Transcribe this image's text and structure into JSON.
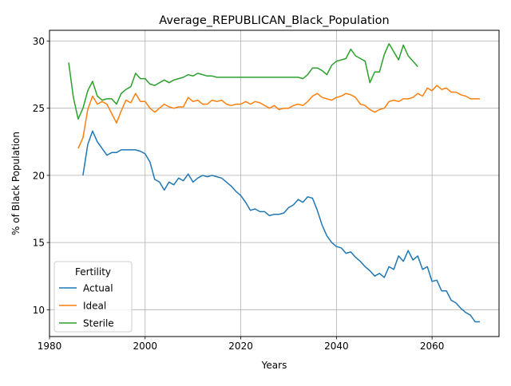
{
  "chart_data": {
    "type": "line",
    "title": "Average_REPUBLICAN_Black_Population",
    "xlabel": "Years",
    "ylabel": "% of Black Population",
    "xlim": [
      1980,
      2074
    ],
    "ylim": [
      8,
      30.8
    ],
    "xticks": [
      1980,
      2000,
      2020,
      2040,
      2060
    ],
    "yticks": [
      10,
      15,
      20,
      25,
      30
    ],
    "grid": true,
    "legend": {
      "title": "Fertility",
      "position": "lower-left"
    },
    "series": [
      {
        "name": "Actual",
        "color": "#1f77b4",
        "points": [
          [
            1987,
            20.0
          ],
          [
            1988,
            22.3
          ],
          [
            1989,
            23.3
          ],
          [
            1990,
            22.5
          ],
          [
            1991,
            22.0
          ],
          [
            1992,
            21.5
          ],
          [
            1993,
            21.7
          ],
          [
            1994,
            21.7
          ],
          [
            1995,
            21.9
          ],
          [
            1996,
            21.9
          ],
          [
            1997,
            21.9
          ],
          [
            1998,
            21.9
          ],
          [
            1999,
            21.8
          ],
          [
            2000,
            21.6
          ],
          [
            2001,
            21.0
          ],
          [
            2002,
            19.7
          ],
          [
            2003,
            19.5
          ],
          [
            2004,
            18.9
          ],
          [
            2005,
            19.5
          ],
          [
            2006,
            19.3
          ],
          [
            2007,
            19.8
          ],
          [
            2008,
            19.6
          ],
          [
            2009,
            20.1
          ],
          [
            2010,
            19.5
          ],
          [
            2011,
            19.8
          ],
          [
            2012,
            20.0
          ],
          [
            2013,
            19.9
          ],
          [
            2014,
            20.0
          ],
          [
            2015,
            19.9
          ],
          [
            2016,
            19.8
          ],
          [
            2017,
            19.5
          ],
          [
            2018,
            19.2
          ],
          [
            2019,
            18.8
          ],
          [
            2020,
            18.5
          ],
          [
            2021,
            18.0
          ],
          [
            2022,
            17.4
          ],
          [
            2023,
            17.5
          ],
          [
            2024,
            17.3
          ],
          [
            2025,
            17.3
          ],
          [
            2026,
            17.0
          ],
          [
            2027,
            17.1
          ],
          [
            2028,
            17.1
          ],
          [
            2029,
            17.2
          ],
          [
            2030,
            17.6
          ],
          [
            2031,
            17.8
          ],
          [
            2032,
            18.2
          ],
          [
            2033,
            18.0
          ],
          [
            2034,
            18.4
          ],
          [
            2035,
            18.3
          ],
          [
            2036,
            17.4
          ],
          [
            2037,
            16.3
          ],
          [
            2038,
            15.5
          ],
          [
            2039,
            15.0
          ],
          [
            2040,
            14.7
          ],
          [
            2041,
            14.6
          ],
          [
            2042,
            14.2
          ],
          [
            2043,
            14.3
          ],
          [
            2044,
            13.9
          ],
          [
            2045,
            13.6
          ],
          [
            2046,
            13.2
          ],
          [
            2047,
            12.9
          ],
          [
            2048,
            12.5
          ],
          [
            2049,
            12.7
          ],
          [
            2050,
            12.4
          ],
          [
            2051,
            13.2
          ],
          [
            2052,
            13.0
          ],
          [
            2053,
            14.0
          ],
          [
            2054,
            13.6
          ],
          [
            2055,
            14.4
          ],
          [
            2056,
            13.7
          ],
          [
            2057,
            14.0
          ],
          [
            2058,
            13.0
          ],
          [
            2059,
            13.2
          ],
          [
            2060,
            12.1
          ],
          [
            2061,
            12.2
          ],
          [
            2062,
            11.4
          ],
          [
            2063,
            11.4
          ],
          [
            2064,
            10.7
          ],
          [
            2065,
            10.5
          ],
          [
            2066,
            10.1
          ],
          [
            2067,
            9.8
          ],
          [
            2068,
            9.6
          ],
          [
            2069,
            9.1
          ],
          [
            2070,
            9.1
          ]
        ]
      },
      {
        "name": "Ideal",
        "color": "#ff7f0e",
        "points": [
          [
            1986,
            22.0
          ],
          [
            1987,
            22.8
          ],
          [
            1988,
            24.9
          ],
          [
            1989,
            25.9
          ],
          [
            1990,
            25.3
          ],
          [
            1991,
            25.5
          ],
          [
            1992,
            25.3
          ],
          [
            1993,
            24.6
          ],
          [
            1994,
            23.9
          ],
          [
            1995,
            24.8
          ],
          [
            1996,
            25.6
          ],
          [
            1997,
            25.4
          ],
          [
            1998,
            26.1
          ],
          [
            1999,
            25.5
          ],
          [
            2000,
            25.5
          ],
          [
            2001,
            25.0
          ],
          [
            2002,
            24.7
          ],
          [
            2003,
            25.0
          ],
          [
            2004,
            25.3
          ],
          [
            2005,
            25.1
          ],
          [
            2006,
            25.0
          ],
          [
            2007,
            25.1
          ],
          [
            2008,
            25.1
          ],
          [
            2009,
            25.8
          ],
          [
            2010,
            25.5
          ],
          [
            2011,
            25.6
          ],
          [
            2012,
            25.3
          ],
          [
            2013,
            25.3
          ],
          [
            2014,
            25.6
          ],
          [
            2015,
            25.5
          ],
          [
            2016,
            25.6
          ],
          [
            2017,
            25.3
          ],
          [
            2018,
            25.2
          ],
          [
            2019,
            25.3
          ],
          [
            2020,
            25.3
          ],
          [
            2021,
            25.5
          ],
          [
            2022,
            25.3
          ],
          [
            2023,
            25.5
          ],
          [
            2024,
            25.4
          ],
          [
            2025,
            25.2
          ],
          [
            2026,
            25.0
          ],
          [
            2027,
            25.2
          ],
          [
            2028,
            24.9
          ],
          [
            2029,
            25.0
          ],
          [
            2030,
            25.0
          ],
          [
            2031,
            25.2
          ],
          [
            2032,
            25.3
          ],
          [
            2033,
            25.2
          ],
          [
            2034,
            25.5
          ],
          [
            2035,
            25.9
          ],
          [
            2036,
            26.1
          ],
          [
            2037,
            25.8
          ],
          [
            2038,
            25.7
          ],
          [
            2039,
            25.6
          ],
          [
            2040,
            25.8
          ],
          [
            2041,
            25.9
          ],
          [
            2042,
            26.1
          ],
          [
            2043,
            26.0
          ],
          [
            2044,
            25.8
          ],
          [
            2045,
            25.3
          ],
          [
            2046,
            25.2
          ],
          [
            2047,
            24.9
          ],
          [
            2048,
            24.7
          ],
          [
            2049,
            24.9
          ],
          [
            2050,
            25.0
          ],
          [
            2051,
            25.5
          ],
          [
            2052,
            25.6
          ],
          [
            2053,
            25.5
          ],
          [
            2054,
            25.7
          ],
          [
            2055,
            25.7
          ],
          [
            2056,
            25.8
          ],
          [
            2057,
            26.1
          ],
          [
            2058,
            25.9
          ],
          [
            2059,
            26.5
          ],
          [
            2060,
            26.3
          ],
          [
            2061,
            26.7
          ],
          [
            2062,
            26.4
          ],
          [
            2063,
            26.5
          ],
          [
            2064,
            26.2
          ],
          [
            2065,
            26.2
          ],
          [
            2066,
            26.0
          ],
          [
            2067,
            25.9
          ],
          [
            2068,
            25.7
          ],
          [
            2069,
            25.7
          ],
          [
            2070,
            25.7
          ]
        ]
      },
      {
        "name": "Sterile",
        "color": "#2ca02c",
        "points": [
          [
            1984,
            28.4
          ],
          [
            1985,
            25.8
          ],
          [
            1986,
            24.2
          ],
          [
            1987,
            25.0
          ],
          [
            1988,
            26.3
          ],
          [
            1989,
            27.0
          ],
          [
            1990,
            25.9
          ],
          [
            1991,
            25.6
          ],
          [
            1992,
            25.7
          ],
          [
            1993,
            25.7
          ],
          [
            1994,
            25.3
          ],
          [
            1995,
            26.1
          ],
          [
            1996,
            26.4
          ],
          [
            1997,
            26.6
          ],
          [
            1998,
            27.6
          ],
          [
            1999,
            27.2
          ],
          [
            2000,
            27.2
          ],
          [
            2001,
            26.8
          ],
          [
            2002,
            26.7
          ],
          [
            2003,
            26.9
          ],
          [
            2004,
            27.1
          ],
          [
            2005,
            26.9
          ],
          [
            2006,
            27.1
          ],
          [
            2007,
            27.2
          ],
          [
            2008,
            27.3
          ],
          [
            2009,
            27.5
          ],
          [
            2010,
            27.4
          ],
          [
            2011,
            27.6
          ],
          [
            2012,
            27.5
          ],
          [
            2013,
            27.4
          ],
          [
            2014,
            27.4
          ],
          [
            2015,
            27.3
          ],
          [
            2016,
            27.3
          ],
          [
            2017,
            27.3
          ],
          [
            2018,
            27.3
          ],
          [
            2019,
            27.3
          ],
          [
            2020,
            27.3
          ],
          [
            2021,
            27.3
          ],
          [
            2022,
            27.3
          ],
          [
            2023,
            27.3
          ],
          [
            2024,
            27.3
          ],
          [
            2025,
            27.3
          ],
          [
            2026,
            27.3
          ],
          [
            2027,
            27.3
          ],
          [
            2028,
            27.3
          ],
          [
            2029,
            27.3
          ],
          [
            2030,
            27.3
          ],
          [
            2031,
            27.3
          ],
          [
            2032,
            27.3
          ],
          [
            2033,
            27.2
          ],
          [
            2034,
            27.5
          ],
          [
            2035,
            28.0
          ],
          [
            2036,
            28.0
          ],
          [
            2037,
            27.8
          ],
          [
            2038,
            27.5
          ],
          [
            2039,
            28.2
          ],
          [
            2040,
            28.5
          ],
          [
            2041,
            28.6
          ],
          [
            2042,
            28.7
          ],
          [
            2043,
            29.4
          ],
          [
            2044,
            28.9
          ],
          [
            2045,
            28.7
          ],
          [
            2046,
            28.5
          ],
          [
            2047,
            26.9
          ],
          [
            2048,
            27.7
          ],
          [
            2049,
            27.7
          ],
          [
            2050,
            29.0
          ],
          [
            2051,
            29.8
          ],
          [
            2052,
            29.2
          ],
          [
            2053,
            28.6
          ],
          [
            2054,
            29.7
          ],
          [
            2055,
            28.9
          ],
          [
            2056,
            28.5
          ],
          [
            2057,
            28.1
          ]
        ]
      }
    ]
  }
}
